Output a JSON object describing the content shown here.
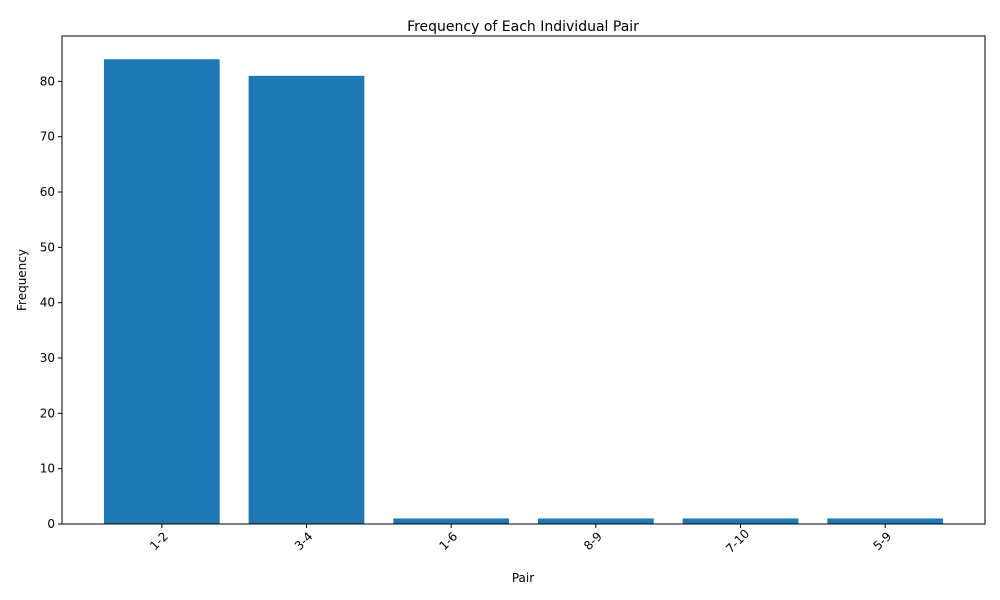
{
  "chart_data": {
    "type": "bar",
    "title": "Frequency of Each Individual Pair",
    "xlabel": "Pair",
    "ylabel": "Frequency",
    "categories": [
      "1-2",
      "3-4",
      "1-6",
      "8-9",
      "7-10",
      "5-9"
    ],
    "values": [
      84,
      81,
      1,
      1,
      1,
      1
    ],
    "ylim": [
      0,
      88.2
    ],
    "yticks": [
      0,
      10,
      20,
      30,
      40,
      50,
      60,
      70,
      80
    ],
    "x_tick_rotation": 45,
    "bar_color": "#1f77b4",
    "grid": false,
    "legend": "none"
  }
}
